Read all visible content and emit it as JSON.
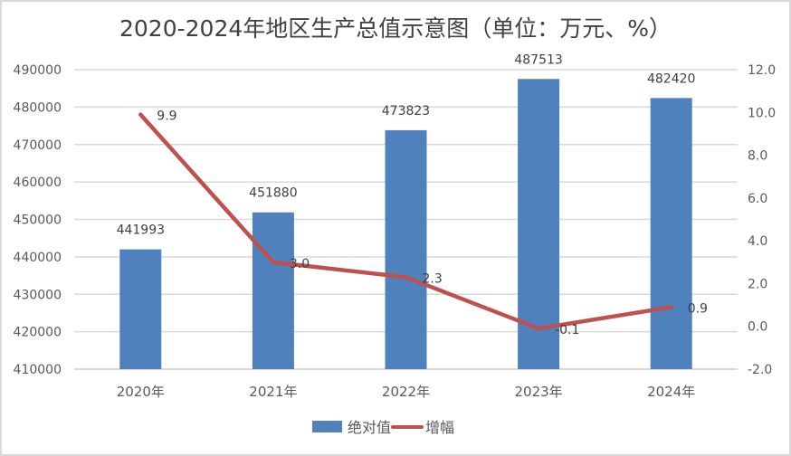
{
  "chart_data": {
    "type": "bar+line",
    "title": "2020-2024年地区生产总值示意图（单位：万元、%）",
    "categories": [
      "2020年",
      "2021年",
      "2022年",
      "2023年",
      "2024年"
    ],
    "series": [
      {
        "name": "绝对值",
        "type": "bar",
        "axis": "left",
        "color": "#4f81bd",
        "values": [
          441993,
          451880,
          473823,
          487513,
          482420
        ]
      },
      {
        "name": "增幅",
        "type": "line",
        "axis": "right",
        "color": "#c0504d",
        "values": [
          9.9,
          3.0,
          2.3,
          -0.1,
          0.9
        ]
      }
    ],
    "y_left": {
      "min": 410000,
      "max": 490000,
      "step": 10000,
      "ticks": [
        "490000",
        "480000",
        "470000",
        "460000",
        "450000",
        "440000",
        "430000",
        "420000",
        "410000"
      ]
    },
    "y_right": {
      "min": -2.0,
      "max": 12.0,
      "step": 2.0,
      "ticks": [
        "12.0",
        "10.0",
        "8.0",
        "6.0",
        "4.0",
        "2.0",
        "0.0",
        "-2.0"
      ]
    },
    "bar_labels": [
      "441993",
      "451880",
      "473823",
      "487513",
      "482420"
    ],
    "line_labels": [
      "9.9",
      "3.0",
      "2.3",
      "-0.1",
      "0.9"
    ],
    "xlabel": "",
    "ylabel": "",
    "grid": true,
    "legend_position": "bottom"
  },
  "legend": {
    "bar_label": "绝对值",
    "line_label": "增幅"
  }
}
